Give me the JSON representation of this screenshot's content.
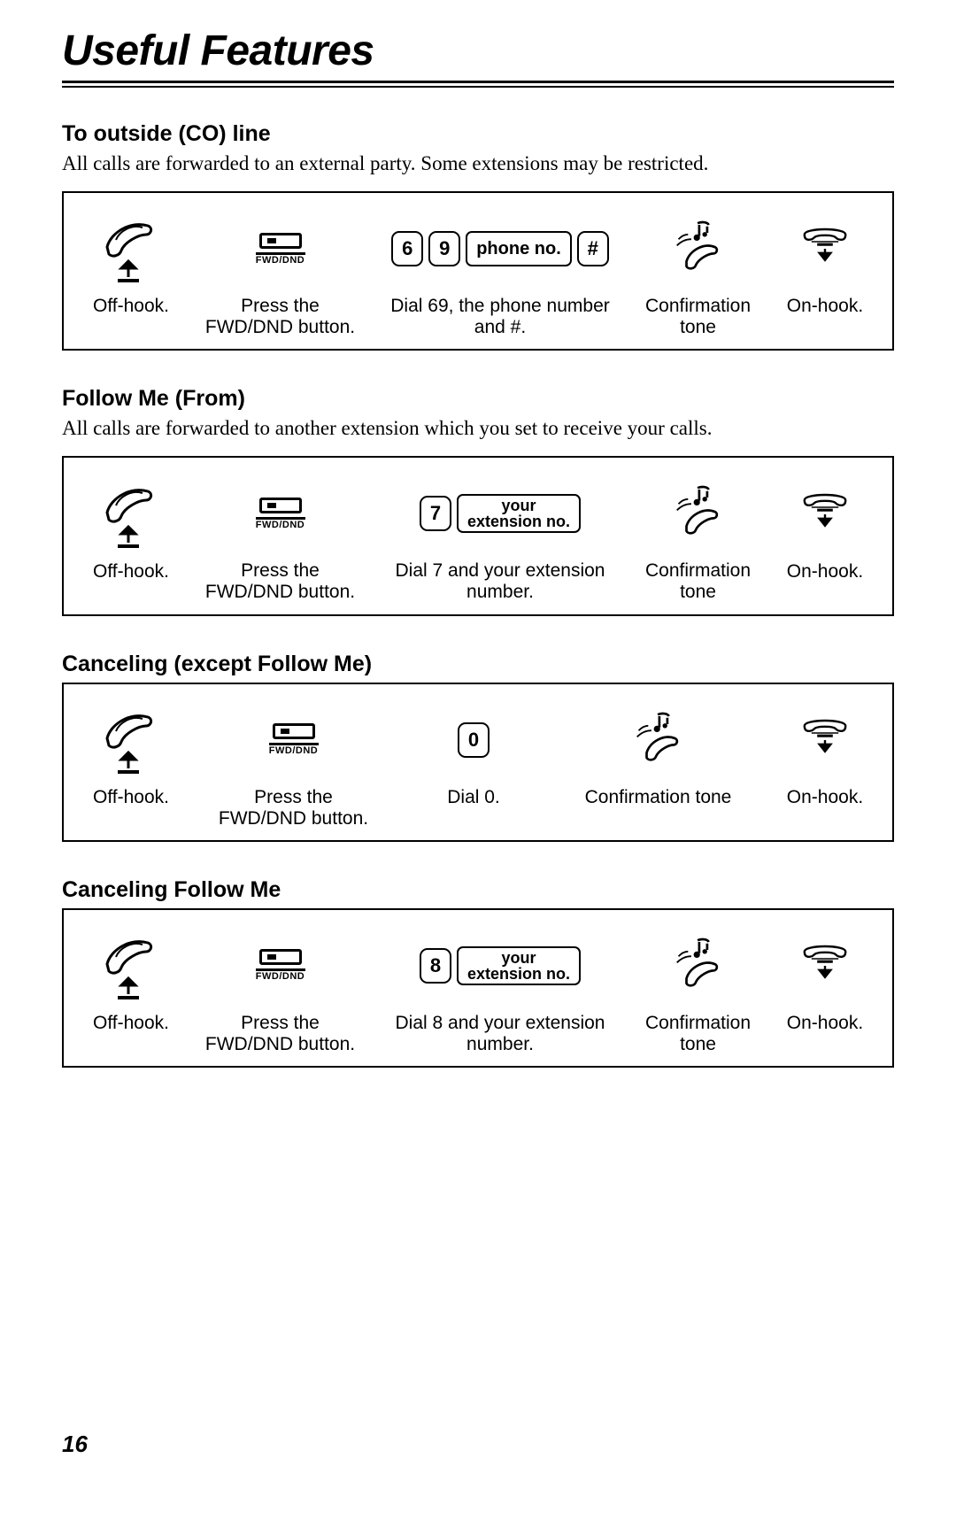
{
  "page": {
    "title": "Useful Features",
    "number": "16",
    "text_color": "#000000",
    "bg_color": "#ffffff"
  },
  "icons": {
    "offhook_name": "handset-offhook-icon",
    "onhook_name": "handset-onhook-icon",
    "tone_name": "confirmation-tone-icon",
    "fwd_button_label": "FWD/DND"
  },
  "sections": [
    {
      "id": "co-line",
      "heading": "To outside (CO) line",
      "body": "All calls are forwarded to an external party. Some extensions may be restricted.",
      "layout": "six",
      "steps": {
        "offhook": "Off-hook.",
        "press": "Press the FWD/DND button.",
        "dial_caption": "Dial 69, the phone number and #.",
        "dial_keys": [
          {
            "type": "key",
            "label": "6"
          },
          {
            "type": "key",
            "label": "9"
          },
          {
            "type": "wide",
            "label": "phone no."
          },
          {
            "type": "key",
            "label": "#"
          }
        ],
        "tone": "Confirmation tone",
        "onhook": "On-hook."
      }
    },
    {
      "id": "follow-me",
      "heading": "Follow Me (From)",
      "body": "All calls are forwarded to another extension which you set to receive your calls.",
      "layout": "six",
      "steps": {
        "offhook": "Off-hook.",
        "press": "Press the FWD/DND button.",
        "dial_caption": "Dial 7 and your extension number.",
        "dial_keys": [
          {
            "type": "key",
            "label": "7"
          },
          {
            "type": "tall",
            "line1": "your",
            "line2": "extension no."
          }
        ],
        "tone": "Confirmation tone",
        "onhook": "On-hook."
      }
    },
    {
      "id": "cancel-except",
      "heading": "Canceling (except Follow Me)",
      "body": "",
      "layout": "five",
      "steps": {
        "offhook": "Off-hook.",
        "press": "Press the FWD/DND button.",
        "dial_caption": "Dial 0.",
        "dial_keys": [
          {
            "type": "key",
            "label": "0"
          }
        ],
        "tone": "Confirmation tone",
        "onhook": "On-hook."
      }
    },
    {
      "id": "cancel-follow",
      "heading": "Canceling Follow Me",
      "body": "",
      "layout": "six",
      "steps": {
        "offhook": "Off-hook.",
        "press": "Press the FWD/DND button.",
        "dial_caption": "Dial 8 and your extension number.",
        "dial_keys": [
          {
            "type": "key",
            "label": "8"
          },
          {
            "type": "tall",
            "line1": "your",
            "line2": "extension no."
          }
        ],
        "tone": "Confirmation tone",
        "onhook": "On-hook."
      }
    }
  ]
}
